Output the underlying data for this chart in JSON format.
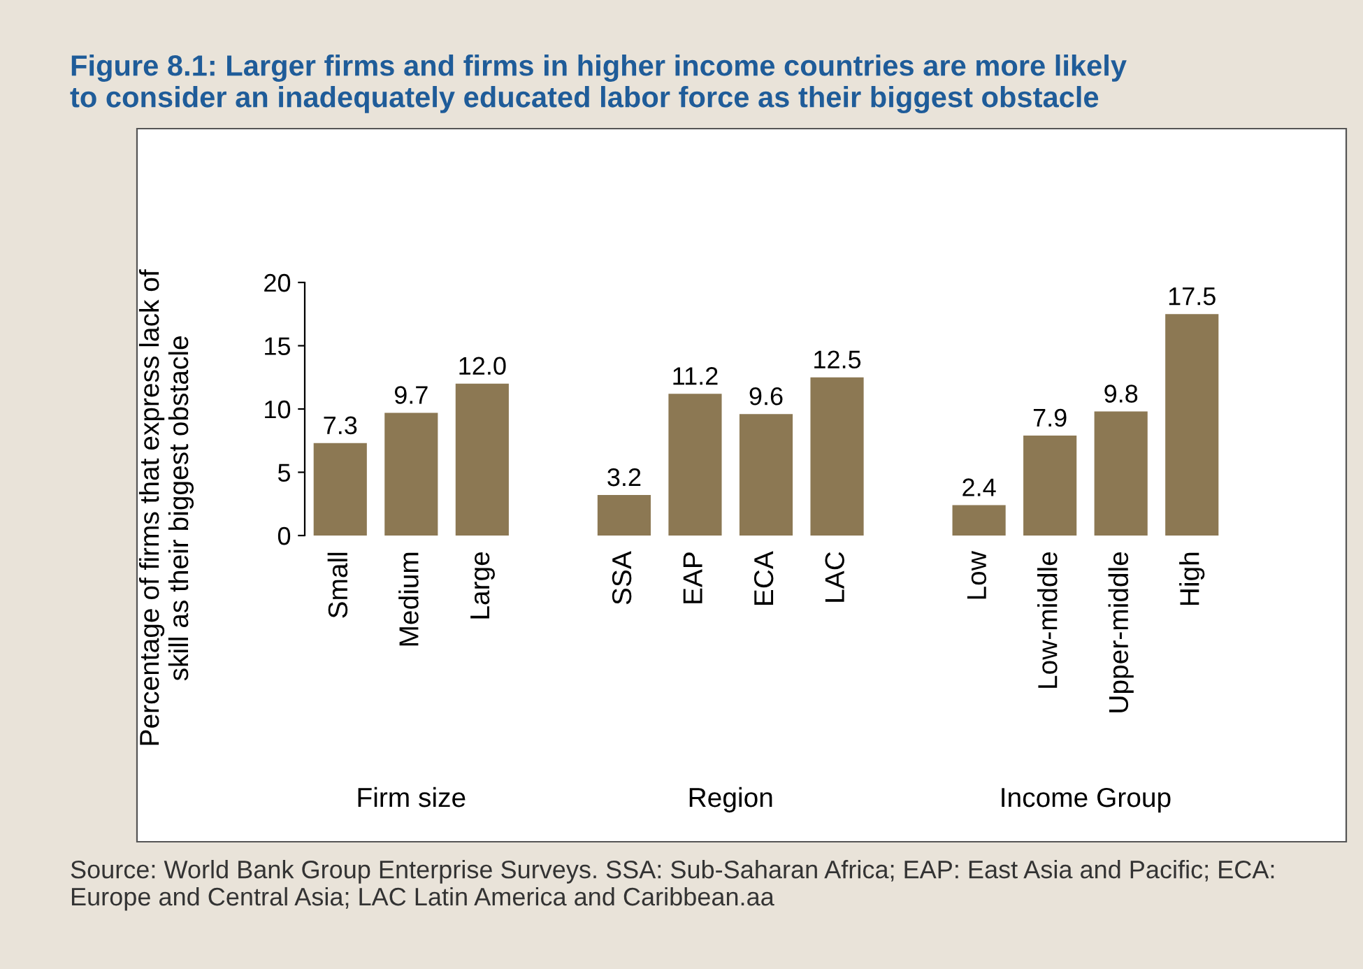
{
  "chart_data": {
    "type": "bar",
    "title": "Figure 8.1: Larger firms and firms in higher income countries are more likely\nto consider an inadequately educated labor force as their biggest obstacle",
    "ylabel": "Percentage of firms that express lack of\nskill as their biggest obstacle",
    "categories": [
      "Small",
      "Medium",
      "Large",
      null,
      "SSA",
      "EAP",
      "ECA",
      "LAC",
      null,
      "Low",
      "Low-middle",
      "Upper-middle",
      "High"
    ],
    "values": [
      7.3,
      9.7,
      12.0,
      null,
      3.2,
      11.2,
      9.6,
      12.5,
      null,
      2.4,
      7.9,
      9.8,
      17.5
    ],
    "value_labels": [
      "7.3",
      "9.7",
      "12.0",
      null,
      "3.2",
      "11.2",
      "9.6",
      "12.5",
      null,
      "2.4",
      "7.9",
      "9.8",
      "17.5"
    ],
    "color": "#8c7853",
    "ylim": [
      0,
      20
    ],
    "yticks": [
      0,
      5,
      10,
      15,
      20
    ],
    "grid": false,
    "legend": false,
    "annotations": [
      "Firm size",
      "Region",
      "Income Group",
      "Source: World Bank Group Enterprise Surveys. SSA: Sub-Saharan Africa; EAP: East Asia and Pacific; ECA: Europe and Central Asia; LAC Latin America and Caribbean.aa"
    ]
  }
}
